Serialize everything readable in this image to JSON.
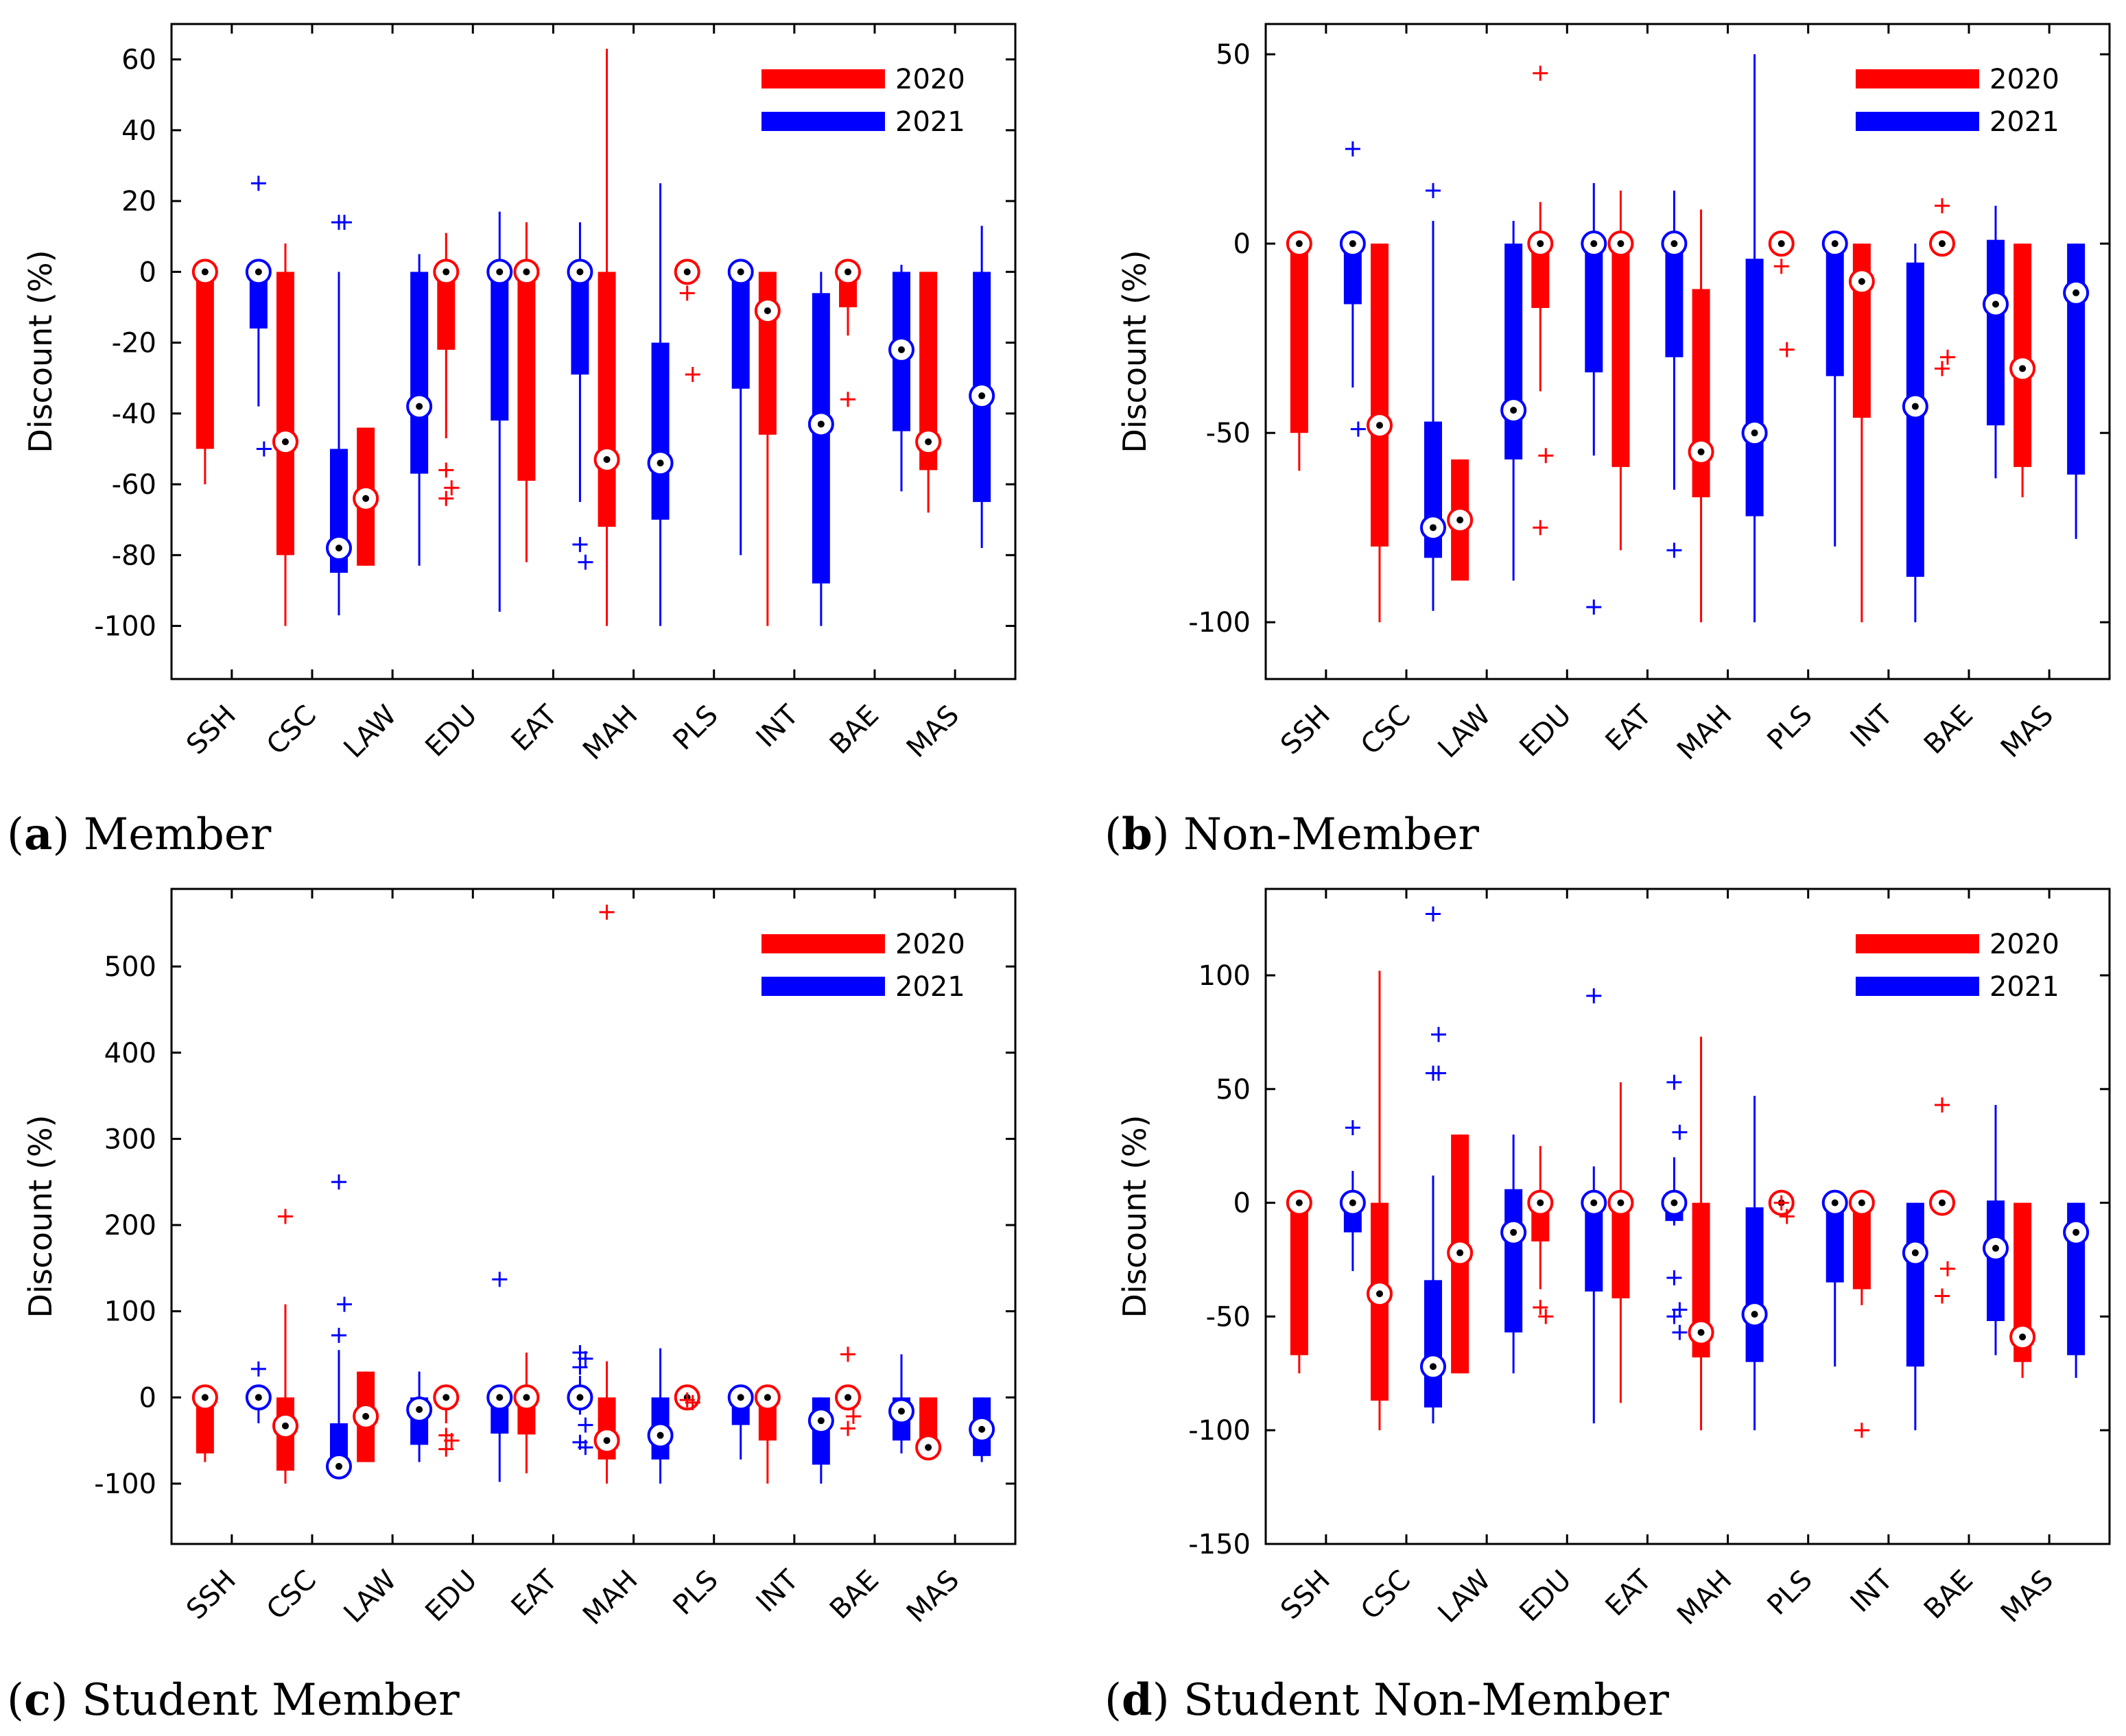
{
  "figure": {
    "categories": [
      "SSH",
      "CSC",
      "LAW",
      "EDU",
      "EAT",
      "MAH",
      "PLS",
      "INT",
      "BAE",
      "MAS"
    ],
    "colors": {
      "y2020": "#ff0000",
      "y2021": "#0000ff"
    }
  },
  "chart_data": [
    {
      "type": "box",
      "panel_letter": "a",
      "caption": "Member",
      "ylabel": "Discount (%)",
      "legend": [
        "2020",
        "2021"
      ],
      "legend_position": "top-right",
      "ylim": [
        -115,
        70
      ],
      "yticks": [
        -100,
        -80,
        -60,
        -40,
        -20,
        0,
        20,
        40,
        60
      ],
      "tick_labels": [
        "-100",
        "-80",
        "-60",
        "-40",
        "-20",
        "0",
        "20",
        "40",
        "60"
      ],
      "categories": [
        "SSH",
        "CSC",
        "LAW",
        "EDU",
        "EAT",
        "MAH",
        "PLS",
        "INT",
        "BAE",
        "MAS"
      ],
      "series": [
        {
          "name": "2020",
          "boxes": [
            {
              "wlo": -60,
              "q1": -50,
              "med": 0,
              "q3": 0,
              "whi": 0,
              "out": []
            },
            {
              "wlo": -100,
              "q1": -80,
              "med": -48,
              "q3": 0,
              "whi": 8,
              "out": []
            },
            {
              "wlo": -83,
              "q1": -83,
              "med": -64,
              "q3": -44,
              "whi": -44,
              "out": []
            },
            {
              "wlo": -47,
              "q1": -22,
              "med": 0,
              "q3": 0,
              "whi": 11,
              "out": [
                -56,
                -61,
                -64
              ]
            },
            {
              "wlo": -82,
              "q1": -59,
              "med": 0,
              "q3": 0,
              "whi": 14,
              "out": []
            },
            {
              "wlo": -100,
              "q1": -72,
              "med": -53,
              "q3": 0,
              "whi": 63,
              "out": []
            },
            {
              "wlo": 0,
              "q1": 0,
              "med": 0,
              "q3": 0,
              "whi": 0,
              "out": [
                -6,
                -29
              ]
            },
            {
              "wlo": -100,
              "q1": -46,
              "med": -11,
              "q3": 0,
              "whi": 0,
              "out": []
            },
            {
              "wlo": -18,
              "q1": -10,
              "med": 0,
              "q3": 0,
              "whi": 0,
              "out": [
                -36
              ]
            },
            {
              "wlo": -68,
              "q1": -56,
              "med": -48,
              "q3": 0,
              "whi": 0,
              "out": []
            }
          ]
        },
        {
          "name": "2021",
          "boxes": [
            {
              "wlo": -38,
              "q1": -16,
              "med": 0,
              "q3": 0,
              "whi": 0,
              "out": [
                25,
                -50
              ]
            },
            {
              "wlo": -97,
              "q1": -85,
              "med": -78,
              "q3": -50,
              "whi": 0,
              "out": [
                14,
                14
              ]
            },
            {
              "wlo": -83,
              "q1": -57,
              "med": -38,
              "q3": 0,
              "whi": 5,
              "out": []
            },
            {
              "wlo": -96,
              "q1": -42,
              "med": 0,
              "q3": 0,
              "whi": 17,
              "out": []
            },
            {
              "wlo": -65,
              "q1": -29,
              "med": 0,
              "q3": 0,
              "whi": 14,
              "out": [
                -77,
                -82
              ]
            },
            {
              "wlo": -100,
              "q1": -70,
              "med": -54,
              "q3": -20,
              "whi": 25,
              "out": []
            },
            {
              "wlo": -80,
              "q1": -33,
              "med": 0,
              "q3": 0,
              "whi": 0,
              "out": []
            },
            {
              "wlo": -100,
              "q1": -88,
              "med": -43,
              "q3": -6,
              "whi": 0,
              "out": []
            },
            {
              "wlo": -62,
              "q1": -45,
              "med": -22,
              "q3": 0,
              "whi": 2,
              "out": []
            },
            {
              "wlo": -78,
              "q1": -65,
              "med": -35,
              "q3": 0,
              "whi": 13,
              "out": []
            }
          ]
        }
      ]
    },
    {
      "type": "box",
      "panel_letter": "b",
      "caption": "Non-Member",
      "ylabel": "Discount (%)",
      "legend": [
        "2020",
        "2021"
      ],
      "legend_position": "top-right",
      "ylim": [
        -115,
        58
      ],
      "yticks": [
        -100,
        -50,
        0,
        50
      ],
      "tick_labels": [
        "-100",
        "-50",
        "0",
        "50"
      ],
      "categories": [
        "SSH",
        "CSC",
        "LAW",
        "EDU",
        "EAT",
        "MAH",
        "PLS",
        "INT",
        "BAE",
        "MAS"
      ],
      "series": [
        {
          "name": "2020",
          "boxes": [
            {
              "wlo": -60,
              "q1": -50,
              "med": 0,
              "q3": 0,
              "whi": 0,
              "out": []
            },
            {
              "wlo": -100,
              "q1": -80,
              "med": -48,
              "q3": 0,
              "whi": 0,
              "out": []
            },
            {
              "wlo": -89,
              "q1": -89,
              "med": -73,
              "q3": -57,
              "whi": -57,
              "out": []
            },
            {
              "wlo": -39,
              "q1": -17,
              "med": 0,
              "q3": 0,
              "whi": 11,
              "out": [
                45,
                -56,
                -75
              ]
            },
            {
              "wlo": -81,
              "q1": -59,
              "med": 0,
              "q3": 0,
              "whi": 14,
              "out": []
            },
            {
              "wlo": -100,
              "q1": -67,
              "med": -55,
              "q3": -12,
              "whi": 9,
              "out": []
            },
            {
              "wlo": 0,
              "q1": 0,
              "med": 0,
              "q3": 0,
              "whi": 0,
              "out": [
                -6,
                -28
              ]
            },
            {
              "wlo": -100,
              "q1": -46,
              "med": -10,
              "q3": 0,
              "whi": 0,
              "out": []
            },
            {
              "wlo": 0,
              "q1": 0,
              "med": 0,
              "q3": 0,
              "whi": 0,
              "out": [
                10,
                -30,
                -33
              ]
            },
            {
              "wlo": -67,
              "q1": -59,
              "med": -33,
              "q3": 0,
              "whi": 0,
              "out": []
            }
          ]
        },
        {
          "name": "2021",
          "boxes": [
            {
              "wlo": -38,
              "q1": -16,
              "med": 0,
              "q3": 0,
              "whi": 0,
              "out": [
                25,
                -49
              ]
            },
            {
              "wlo": -97,
              "q1": -83,
              "med": -75,
              "q3": -47,
              "whi": 6,
              "out": [
                14
              ]
            },
            {
              "wlo": -89,
              "q1": -57,
              "med": -44,
              "q3": 0,
              "whi": 6,
              "out": []
            },
            {
              "wlo": -56,
              "q1": -34,
              "med": 0,
              "q3": 0,
              "whi": 16,
              "out": [
                -96
              ]
            },
            {
              "wlo": -65,
              "q1": -30,
              "med": 0,
              "q3": 0,
              "whi": 14,
              "out": [
                -81
              ]
            },
            {
              "wlo": -100,
              "q1": -72,
              "med": -50,
              "q3": -4,
              "whi": 50,
              "out": []
            },
            {
              "wlo": -80,
              "q1": -35,
              "med": 0,
              "q3": 0,
              "whi": 0,
              "out": []
            },
            {
              "wlo": -100,
              "q1": -88,
              "med": -43,
              "q3": -5,
              "whi": 0,
              "out": []
            },
            {
              "wlo": -62,
              "q1": -48,
              "med": -16,
              "q3": 1,
              "whi": 10,
              "out": []
            },
            {
              "wlo": -78,
              "q1": -61,
              "med": -13,
              "q3": 0,
              "whi": 0,
              "out": []
            }
          ]
        }
      ]
    },
    {
      "type": "box",
      "panel_letter": "c",
      "caption": "Student Member",
      "ylabel": "Discount (%)",
      "legend": [
        "2020",
        "2021"
      ],
      "legend_position": "top-right",
      "ylim": [
        -170,
        590
      ],
      "yticks": [
        -100,
        0,
        100,
        200,
        300,
        400,
        500
      ],
      "tick_labels": [
        "-100",
        "0",
        "100",
        "200",
        "300",
        "400",
        "500"
      ],
      "categories": [
        "SSH",
        "CSC",
        "LAW",
        "EDU",
        "EAT",
        "MAH",
        "PLS",
        "INT",
        "BAE",
        "MAS"
      ],
      "series": [
        {
          "name": "2020",
          "boxes": [
            {
              "wlo": -75,
              "q1": -65,
              "med": 0,
              "q3": 0,
              "whi": 0,
              "out": []
            },
            {
              "wlo": -100,
              "q1": -85,
              "med": -33,
              "q3": 0,
              "whi": 108,
              "out": [
                210
              ]
            },
            {
              "wlo": -75,
              "q1": -75,
              "med": -22,
              "q3": 30,
              "whi": 30,
              "out": []
            },
            {
              "wlo": -30,
              "q1": -10,
              "med": 0,
              "q3": 0,
              "whi": 10,
              "out": [
                -44,
                -50,
                -60
              ]
            },
            {
              "wlo": -88,
              "q1": -43,
              "med": 0,
              "q3": 0,
              "whi": 52,
              "out": []
            },
            {
              "wlo": -100,
              "q1": -72,
              "med": -50,
              "q3": 0,
              "whi": 42,
              "out": [
                563
              ]
            },
            {
              "wlo": 0,
              "q1": 0,
              "med": 0,
              "q3": 0,
              "whi": 0,
              "out": [
                -3,
                -6
              ]
            },
            {
              "wlo": -100,
              "q1": -50,
              "med": 0,
              "q3": 0,
              "whi": 0,
              "out": []
            },
            {
              "wlo": -15,
              "q1": -5,
              "med": 0,
              "q3": 0,
              "whi": 0,
              "out": [
                50,
                -22,
                -36
              ]
            },
            {
              "wlo": -70,
              "q1": -60,
              "med": -58,
              "q3": 0,
              "whi": 0,
              "out": []
            }
          ]
        },
        {
          "name": "2021",
          "boxes": [
            {
              "wlo": -30,
              "q1": -10,
              "med": 0,
              "q3": 0,
              "whi": 0,
              "out": [
                33
              ]
            },
            {
              "wlo": -85,
              "q1": -80,
              "med": -80,
              "q3": -30,
              "whi": 55,
              "out": [
                250,
                108,
                72
              ]
            },
            {
              "wlo": -75,
              "q1": -55,
              "med": -14,
              "q3": 0,
              "whi": 30,
              "out": []
            },
            {
              "wlo": -98,
              "q1": -42,
              "med": 0,
              "q3": 0,
              "whi": 0,
              "out": [
                137
              ]
            },
            {
              "wlo": -20,
              "q1": -8,
              "med": 0,
              "q3": 0,
              "whi": 25,
              "out": [
                52,
                45,
                35,
                -32,
                -52,
                -58
              ]
            },
            {
              "wlo": -100,
              "q1": -72,
              "med": -44,
              "q3": 0,
              "whi": 57,
              "out": []
            },
            {
              "wlo": -72,
              "q1": -32,
              "med": 0,
              "q3": 0,
              "whi": 0,
              "out": []
            },
            {
              "wlo": -100,
              "q1": -78,
              "med": -27,
              "q3": 0,
              "whi": 0,
              "out": []
            },
            {
              "wlo": -65,
              "q1": -50,
              "med": -16,
              "q3": 0,
              "whi": 50,
              "out": []
            },
            {
              "wlo": -75,
              "q1": -68,
              "med": -37,
              "q3": 0,
              "whi": 0,
              "out": []
            }
          ]
        }
      ]
    },
    {
      "type": "box",
      "panel_letter": "d",
      "caption": "Student Non-Member",
      "ylabel": "Discount (%)",
      "legend": [
        "2020",
        "2021"
      ],
      "legend_position": "top-right",
      "ylim": [
        -150,
        138
      ],
      "yticks": [
        -150,
        -100,
        -50,
        0,
        50,
        100
      ],
      "tick_labels": [
        "-150",
        "-100",
        "-50",
        "0",
        "50",
        "100"
      ],
      "categories": [
        "SSH",
        "CSC",
        "LAW",
        "EDU",
        "EAT",
        "MAH",
        "PLS",
        "INT",
        "BAE",
        "MAS"
      ],
      "series": [
        {
          "name": "2020",
          "boxes": [
            {
              "wlo": -75,
              "q1": -67,
              "med": 0,
              "q3": 0,
              "whi": 0,
              "out": []
            },
            {
              "wlo": -100,
              "q1": -87,
              "med": -40,
              "q3": 0,
              "whi": 102,
              "out": []
            },
            {
              "wlo": -75,
              "q1": -75,
              "med": -22,
              "q3": 30,
              "whi": 30,
              "out": []
            },
            {
              "wlo": -38,
              "q1": -17,
              "med": 0,
              "q3": 0,
              "whi": 25,
              "out": [
                -46,
                -50
              ]
            },
            {
              "wlo": -88,
              "q1": -42,
              "med": 0,
              "q3": 0,
              "whi": 53,
              "out": []
            },
            {
              "wlo": -100,
              "q1": -68,
              "med": -57,
              "q3": 0,
              "whi": 73,
              "out": []
            },
            {
              "wlo": 0,
              "q1": 0,
              "med": 0,
              "q3": 0,
              "whi": 0,
              "out": [
                0,
                -6
              ]
            },
            {
              "wlo": -45,
              "q1": -38,
              "med": 0,
              "q3": 0,
              "whi": 0,
              "out": [
                -100
              ]
            },
            {
              "wlo": 0,
              "q1": 0,
              "med": 0,
              "q3": 0,
              "whi": 0,
              "out": [
                43,
                -29,
                -41
              ]
            },
            {
              "wlo": -77,
              "q1": -70,
              "med": -59,
              "q3": 0,
              "whi": 0,
              "out": []
            }
          ]
        },
        {
          "name": "2021",
          "boxes": [
            {
              "wlo": -30,
              "q1": -13,
              "med": 0,
              "q3": 0,
              "whi": 14,
              "out": [
                33
              ]
            },
            {
              "wlo": -97,
              "q1": -90,
              "med": -72,
              "q3": -34,
              "whi": 12,
              "out": [
                127,
                74,
                57,
                57
              ]
            },
            {
              "wlo": -75,
              "q1": -57,
              "med": -13,
              "q3": 6,
              "whi": 30,
              "out": []
            },
            {
              "wlo": -97,
              "q1": -39,
              "med": 0,
              "q3": 0,
              "whi": 16,
              "out": [
                91
              ]
            },
            {
              "wlo": -10,
              "q1": -8,
              "med": 0,
              "q3": 0,
              "whi": 20,
              "out": [
                53,
                31,
                -33,
                -47,
                -50,
                -57
              ]
            },
            {
              "wlo": -100,
              "q1": -70,
              "med": -49,
              "q3": -2,
              "whi": 47,
              "out": []
            },
            {
              "wlo": -72,
              "q1": -35,
              "med": 0,
              "q3": 0,
              "whi": 0,
              "out": []
            },
            {
              "wlo": -100,
              "q1": -72,
              "med": -22,
              "q3": 0,
              "whi": 0,
              "out": []
            },
            {
              "wlo": -67,
              "q1": -52,
              "med": -20,
              "q3": 1,
              "whi": 43,
              "out": []
            },
            {
              "wlo": -77,
              "q1": -67,
              "med": -13,
              "q3": 0,
              "whi": 0,
              "out": []
            }
          ]
        }
      ]
    }
  ]
}
